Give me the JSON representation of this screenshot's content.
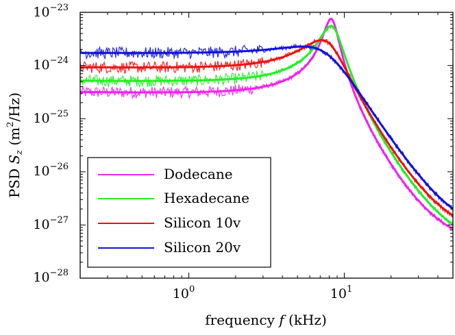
{
  "chart_data": {
    "type": "line",
    "title": "",
    "xlabel": {
      "prefix": "frequency ",
      "symbol": "f",
      "suffix": " (kHz)"
    },
    "ylabel": {
      "prefix": "PSD ",
      "symbol": "S",
      "subscript": "z",
      "unit_open": "  (m",
      "unit_exp": "2",
      "unit_close": "/Hz)"
    },
    "xscale": "log",
    "yscale": "log",
    "xlim": [
      0.2,
      50
    ],
    "ylim": [
      1e-28,
      1e-23
    ],
    "x_ticks": [
      {
        "value": 1,
        "base": "10",
        "exp": "0"
      },
      {
        "value": 10,
        "base": "10",
        "exp": "1"
      }
    ],
    "y_ticks": [
      {
        "value": 1e-23,
        "base": "10",
        "exp": "−23"
      },
      {
        "value": 1e-24,
        "base": "10",
        "exp": "−24"
      },
      {
        "value": 1e-25,
        "base": "10",
        "exp": "−25"
      },
      {
        "value": 1e-26,
        "base": "10",
        "exp": "−26"
      },
      {
        "value": 1e-27,
        "base": "10",
        "exp": "−27"
      },
      {
        "value": 1e-28,
        "base": "10",
        "exp": "−28"
      }
    ],
    "grid": false,
    "legend_position": "bottom-left",
    "series": [
      {
        "name": "Dodecane",
        "color": "#ee22ee",
        "fit": {
          "A": 3e-25,
          "f0": 8.3,
          "Q": 5.0
        }
      },
      {
        "name": "Hexadecane",
        "color": "#22ee22",
        "fit": {
          "A": 5e-25,
          "f0": 8.4,
          "Q": 3.3
        }
      },
      {
        "name": "Silicon 10v",
        "color": "#ee1111",
        "fit": {
          "A": 9e-25,
          "f0": 7.8,
          "Q": 1.75
        }
      },
      {
        "name": "Silicon 20v",
        "color": "#1111dd",
        "fit": {
          "A": 1.7e-24,
          "f0": 7.6,
          "Q": 1.0
        }
      }
    ],
    "data_noise_floor": [
      {
        "name": "Dodecane",
        "floor": 1e-27
      },
      {
        "name": "Hexadecane",
        "floor": 1e-27
      },
      {
        "name": "Silicon 10v",
        "floor": 1.6e-27
      },
      {
        "name": "Silicon 20v",
        "floor": 1.8e-27
      }
    ]
  }
}
